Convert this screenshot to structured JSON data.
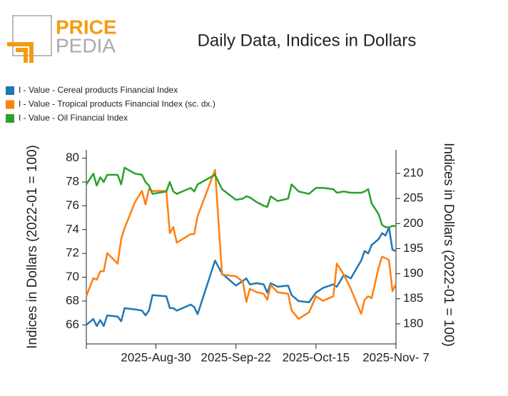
{
  "logo": {
    "first": "PRICE",
    "second": "PEDIA"
  },
  "chart_data": {
    "type": "line",
    "title": "Daily Data, Indices in Dollars",
    "ylabel": "Indices in Dollars (2022-01 = 100)",
    "y2label": "Indices in Dollars (2022-01 = 100)",
    "x": [
      "2025-08-10",
      "2025-08-12",
      "2025-08-13",
      "2025-08-14",
      "2025-08-15",
      "2025-08-16",
      "2025-08-19",
      "2025-08-20",
      "2025-08-21",
      "2025-08-24",
      "2025-08-26",
      "2025-08-27",
      "2025-08-28",
      "2025-08-29",
      "2025-09-02",
      "2025-09-03",
      "2025-09-04",
      "2025-09-05",
      "2025-09-09",
      "2025-09-10",
      "2025-09-11",
      "2025-09-16",
      "2025-09-18",
      "2025-09-22",
      "2025-09-24",
      "2025-09-25",
      "2025-09-26",
      "2025-09-28",
      "2025-09-30",
      "2025-10-01",
      "2025-10-02",
      "2025-10-04",
      "2025-10-07",
      "2025-10-08",
      "2025-10-10",
      "2025-10-13",
      "2025-10-15",
      "2025-10-17",
      "2025-10-20",
      "2025-10-21",
      "2025-10-23",
      "2025-10-25",
      "2025-10-28",
      "2025-10-29",
      "2025-10-30",
      "2025-10-31",
      "2025-11-02",
      "2025-11-03",
      "2025-11-04",
      "2025-11-05",
      "2025-11-06",
      "2025-11-07"
    ],
    "xlim": [
      "2025-08-10",
      "2025-11-07"
    ],
    "xticks": [
      {
        "value": "2025-08-30",
        "label": "2025-Aug-30"
      },
      {
        "value": "2025-09-22",
        "label": "2025-Sep-22"
      },
      {
        "value": "2025-10-15",
        "label": "2025-Oct-15"
      },
      {
        "value": "2025-11-07",
        "label": "2025-Nov- 7"
      }
    ],
    "ylim": [
      64.4,
      80.7
    ],
    "yticks": [
      66,
      68,
      70,
      72,
      74,
      76,
      78,
      80
    ],
    "y2lim": [
      176,
      214.7
    ],
    "y2ticks": [
      180,
      185,
      190,
      195,
      200,
      205,
      210
    ],
    "series": [
      {
        "name": "I - Value - Cereal products Financial Index",
        "color": "#1f77b4",
        "values": [
          66.0,
          66.5,
          65.9,
          66.4,
          65.9,
          66.8,
          66.7,
          66.3,
          67.4,
          67.3,
          67.2,
          66.8,
          67.2,
          68.5,
          68.4,
          67.4,
          67.4,
          67.2,
          67.7,
          67.5,
          66.9,
          71.4,
          70.3,
          69.3,
          69.7,
          69.9,
          69.4,
          69.5,
          69.4,
          68.7,
          69.5,
          69.2,
          69.3,
          68.5,
          68.0,
          67.9,
          68.7,
          69.1,
          69.4,
          69.2,
          70.2,
          69.9,
          71.4,
          72.2,
          72.0,
          72.7,
          73.2,
          73.7,
          73.5,
          74.2,
          72.3,
          72.2
        ]
      },
      {
        "name": "I - Value - Tropical products Financial Index (sc. dx.)",
        "color": "#ff7f0e",
        "axis": "y2",
        "values": [
          185.5,
          189.1,
          188.8,
          190.5,
          190.5,
          194.1,
          192.0,
          196.9,
          199.1,
          204.3,
          206.5,
          203.8,
          206.9,
          206.5,
          206.5,
          198.1,
          199.3,
          196.2,
          197.9,
          197.9,
          201.5,
          210.7,
          189.8,
          189.5,
          188.4,
          184.4,
          187.0,
          186.3,
          186.0,
          184.8,
          187.7,
          186.3,
          186.0,
          182.7,
          181.0,
          182.3,
          185.5,
          184.6,
          185.5,
          192.0,
          189.8,
          187.0,
          182.0,
          184.8,
          185.5,
          185.1,
          191.2,
          193.4,
          193.1,
          192.7,
          186.5,
          188.0
        ]
      },
      {
        "name": "I - Value - Oil Financial Index",
        "color": "#2ca02c",
        "values": [
          77.8,
          78.7,
          77.7,
          78.4,
          78.0,
          78.6,
          78.6,
          77.8,
          79.2,
          78.7,
          78.6,
          78.0,
          77.7,
          77.0,
          77.2,
          78.0,
          77.2,
          77.0,
          77.5,
          77.2,
          77.8,
          78.6,
          77.4,
          76.5,
          76.6,
          76.8,
          76.7,
          76.3,
          76.0,
          75.9,
          76.8,
          76.4,
          76.6,
          77.8,
          77.2,
          77.0,
          77.5,
          77.5,
          77.4,
          77.1,
          77.2,
          77.1,
          77.1,
          77.2,
          77.4,
          76.2,
          75.3,
          74.4,
          74.2,
          74.2,
          74.3,
          74.3
        ]
      }
    ]
  }
}
